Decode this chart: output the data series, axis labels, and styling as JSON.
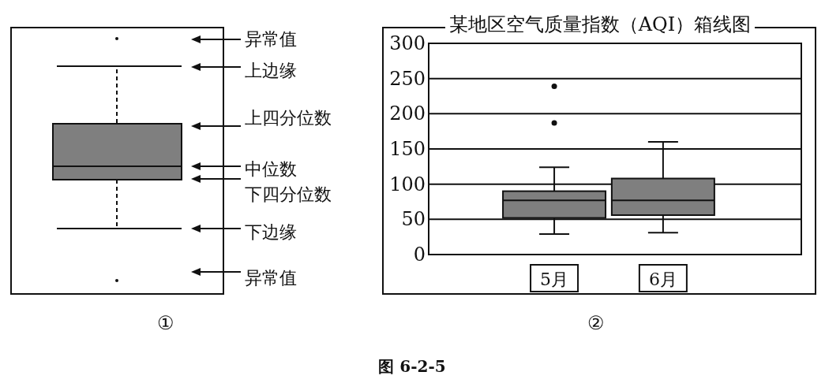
{
  "chart_data": [
    {
      "type": "other",
      "annotations": [
        "异常值",
        "上边缘",
        "上四分位数",
        "中位数",
        "下四分位数",
        "下边缘",
        "异常值",
        "①"
      ]
    },
    {
      "type": "box",
      "title": "某地区空气质量指数（AQI）箱线图",
      "categories": [
        "5月",
        "6月"
      ],
      "series": [
        {
          "color": "#7f7f7f",
          "boxes": [
            {
              "low": 29,
              "q1": 52,
              "median": 77,
              "q3": 90,
              "high": 124,
              "outliers": [
                187,
                239
              ]
            },
            {
              "low": 31,
              "q1": 56,
              "median": 77,
              "q3": 108,
              "high": 160
            }
          ]
        }
      ],
      "ylim": [
        0,
        300
      ],
      "yticks": [
        0,
        50,
        100,
        150,
        200,
        250,
        300
      ],
      "grid": "y",
      "annotations": [
        "②",
        "图 6-2-5"
      ]
    }
  ]
}
